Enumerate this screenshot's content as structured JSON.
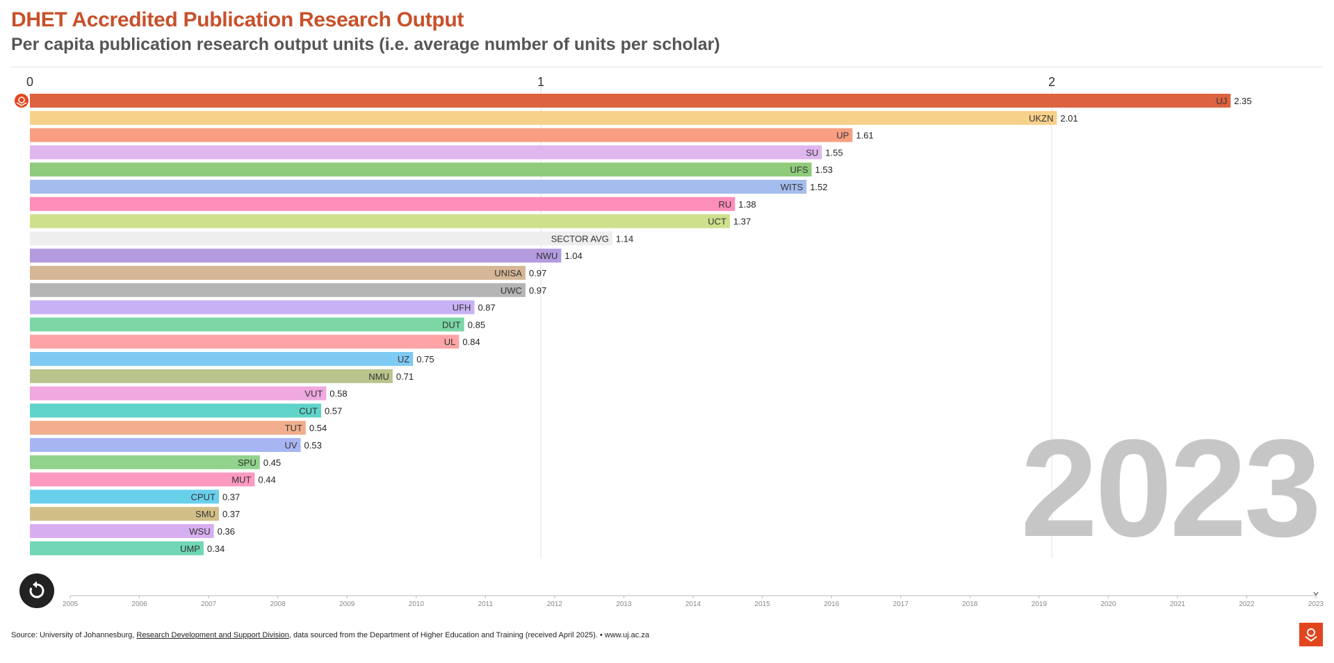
{
  "title": "DHET Accredited Publication Research Output",
  "subtitle": "Per capita publication research output units (i.e. average number of units per scholar)",
  "year": "2023",
  "source": {
    "prefix": "Source: University of Johannesburg, ",
    "link_text": "Research Development and Support Division",
    "suffix": ", data sourced from the Department of Higher Education and Training (received April 2025). • www.uj.ac.za"
  },
  "timeline": {
    "years": [
      "2005",
      "2006",
      "2007",
      "2008",
      "2009",
      "2010",
      "2011",
      "2012",
      "2013",
      "2014",
      "2015",
      "2016",
      "2017",
      "2018",
      "2019",
      "2020",
      "2021",
      "2022",
      "2023"
    ],
    "current": "2023"
  },
  "icons": {
    "replay": "replay-icon",
    "marker": "uj-logo-icon",
    "logo": "uj-logo-icon"
  },
  "chart_data": {
    "type": "bar",
    "orientation": "horizontal",
    "title": "DHET Accredited Publication Research Output",
    "subtitle": "Per capita publication research output units (i.e. average number of units per scholar)",
    "xlim": [
      0,
      2.5
    ],
    "x_ticks": [
      "0",
      "1",
      "2"
    ],
    "x_tick_values": [
      0,
      1,
      2
    ],
    "gridlines": true,
    "year": "2023",
    "categories": [
      "UJ",
      "UKZN",
      "UP",
      "SU",
      "UFS",
      "WITS",
      "RU",
      "UCT",
      "SECTOR AVG",
      "NWU",
      "UNISA",
      "UWC",
      "UFH",
      "DUT",
      "UL",
      "UZ",
      "NMU",
      "VUT",
      "CUT",
      "TUT",
      "UV",
      "SPU",
      "MUT",
      "CPUT",
      "SMU",
      "WSU",
      "UMP"
    ],
    "values": [
      2.35,
      2.01,
      1.61,
      1.55,
      1.53,
      1.52,
      1.38,
      1.37,
      1.14,
      1.04,
      0.97,
      0.97,
      0.87,
      0.85,
      0.84,
      0.75,
      0.71,
      0.58,
      0.57,
      0.54,
      0.53,
      0.45,
      0.44,
      0.37,
      0.37,
      0.36,
      0.34
    ],
    "value_labels": [
      "2.35",
      "2.01",
      "1.61",
      "1.55",
      "1.53",
      "1.52",
      "1.38",
      "1.37",
      "1.14",
      "1.04",
      "0.97",
      "0.97",
      "0.87",
      "0.85",
      "0.84",
      "0.75",
      "0.71",
      "0.58",
      "0.57",
      "0.54",
      "0.53",
      "0.45",
      "0.44",
      "0.37",
      "0.37",
      "0.36",
      "0.34"
    ],
    "colors": [
      "#dd6240",
      "#f7d08a",
      "#f89f82",
      "#dfb6ee",
      "#8fcb7a",
      "#a5bdee",
      "#fd8db9",
      "#cde08c",
      "#eeeeee",
      "#b49be0",
      "#d5b696",
      "#b5b5b5",
      "#c8b1f4",
      "#7cd6a5",
      "#fea4a6",
      "#7fcaf3",
      "#b9c48d",
      "#f0a8e0",
      "#5ed3c9",
      "#f2ae8c",
      "#a8b5f3",
      "#91d28c",
      "#fc99c1",
      "#69d0ec",
      "#d2bf88",
      "#d7aeef",
      "#70d6b5"
    ],
    "highlight": "UJ"
  }
}
